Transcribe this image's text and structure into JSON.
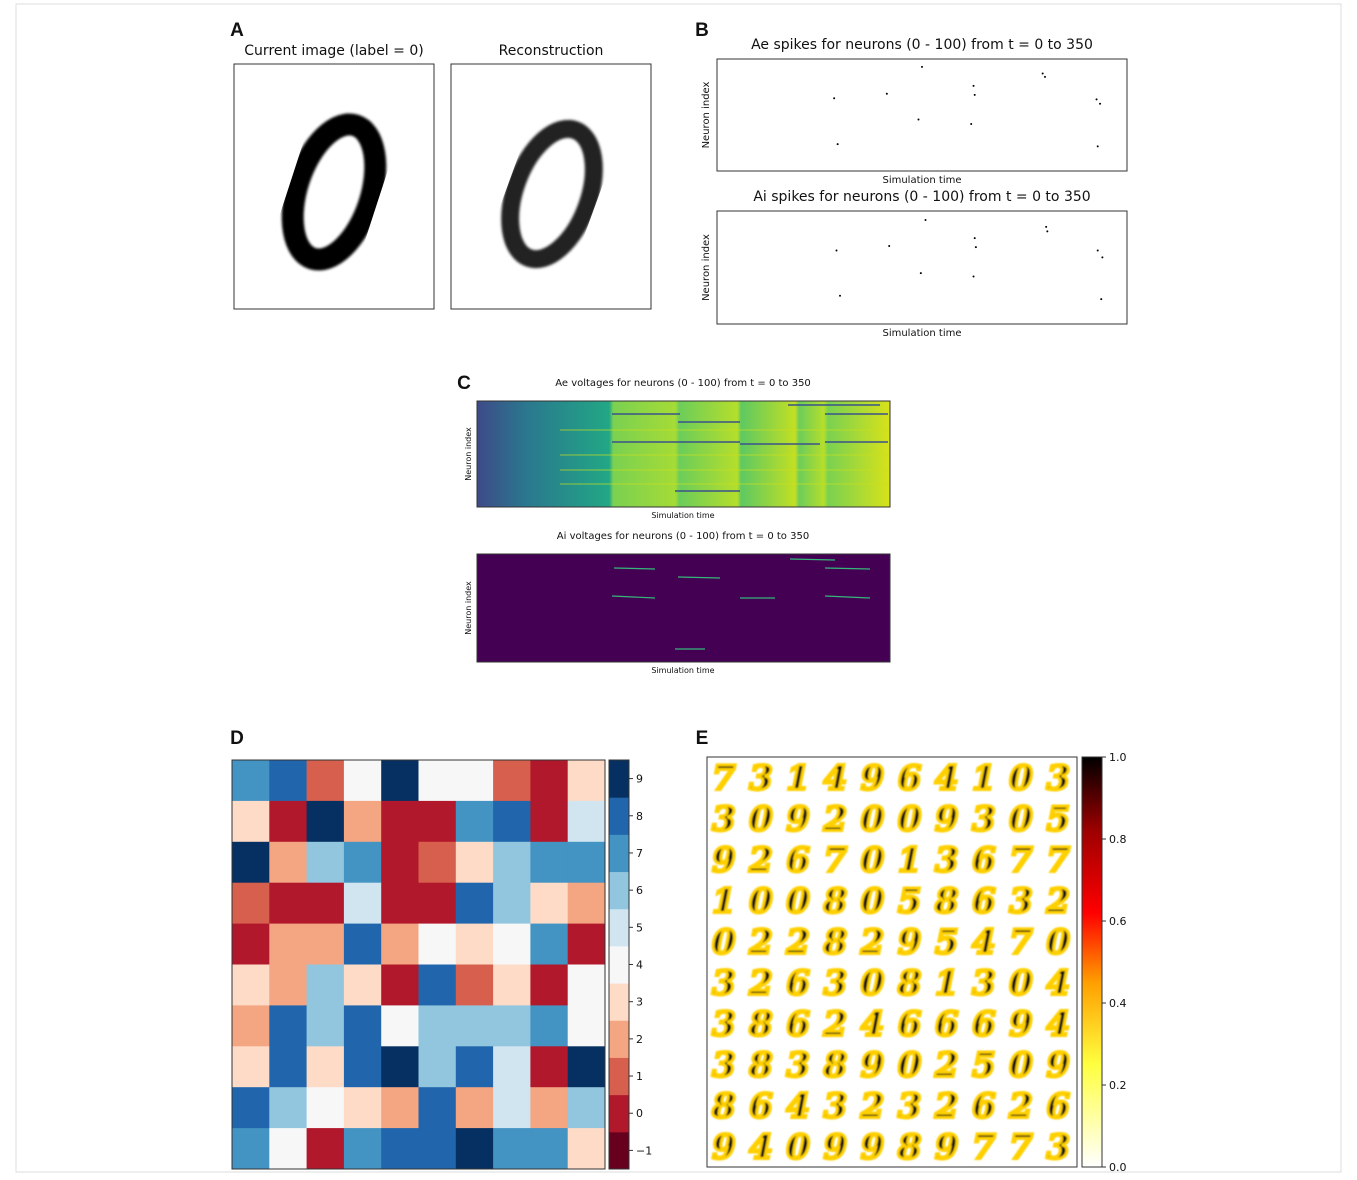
{
  "chart_data": [
    {
      "type": "image",
      "panel_label": "A",
      "titles": [
        "Current image (label = 0)",
        "Reconstruction"
      ]
    },
    {
      "type": "scatter",
      "panel_label": "B",
      "title": "Ae spikes for neurons (0 - 100) from t = 0 to 350",
      "xlabel": "Simulation time",
      "ylabel": "Neuron index",
      "xlim": [
        0,
        350
      ],
      "ylim": [
        0,
        100
      ],
      "x": [
        175,
        100,
        145,
        219,
        220,
        278,
        280,
        324,
        327,
        172,
        217,
        103,
        325
      ],
      "y": [
        93,
        65,
        69,
        76,
        68,
        87,
        84,
        64,
        60,
        46,
        42,
        24,
        22
      ],
      "color": "#000000"
    },
    {
      "type": "scatter",
      "title": "Ai spikes for neurons (0 - 100) from t = 0 to 350",
      "xlabel": "Simulation time",
      "ylabel": "Neuron index",
      "xlim": [
        0,
        350
      ],
      "ylim": [
        0,
        100
      ],
      "x": [
        178,
        102,
        147,
        220,
        221,
        281,
        282,
        325,
        329,
        174,
        219,
        105,
        328
      ],
      "y": [
        92,
        65,
        69,
        76,
        68,
        86,
        82,
        65,
        59,
        45,
        42,
        25,
        22
      ],
      "color": "#000000"
    },
    {
      "type": "voltage-image",
      "panel_label": "C",
      "title": "Ae voltages for neurons (0 - 100) from t = 0 to 350",
      "xlabel": "Simulation time",
      "ylabel": "Neuron index"
    },
    {
      "type": "voltage-image",
      "title": "Ai voltages for neurons (0 - 100) from t = 0 to 350",
      "xlabel": "Simulation time",
      "ylabel": "Neuron index"
    },
    {
      "type": "heatmap",
      "panel_label": "D",
      "values": [
        [
          7,
          8,
          1,
          4,
          9,
          4,
          4,
          1,
          0,
          3
        ],
        [
          3,
          0,
          9,
          2,
          0,
          0,
          7,
          8,
          0,
          5
        ],
        [
          9,
          2,
          6,
          7,
          0,
          1,
          3,
          6,
          7,
          7
        ],
        [
          1,
          0,
          0,
          5,
          0,
          0,
          8,
          6,
          3,
          2
        ],
        [
          0,
          2,
          2,
          8,
          2,
          4,
          3,
          4,
          7,
          0
        ],
        [
          3,
          2,
          6,
          3,
          0,
          8,
          1,
          3,
          0,
          4
        ],
        [
          2,
          8,
          6,
          8,
          4,
          6,
          6,
          6,
          7,
          4
        ],
        [
          3,
          8,
          3,
          8,
          9,
          6,
          8,
          5,
          0,
          9
        ],
        [
          8,
          6,
          4,
          3,
          2,
          8,
          2,
          5,
          2,
          6
        ],
        [
          7,
          4,
          0,
          7,
          8,
          8,
          9,
          7,
          7,
          3
        ]
      ],
      "colors": [
        "#67001f",
        "#b2182b",
        "#d6604d",
        "#f4a582",
        "#fddbc7",
        "#f7f7f7",
        "#d1e5f0",
        "#92c5de",
        "#4393c3",
        "#2166ac",
        "#053061"
      ],
      "clim": [
        -1.5,
        9.5
      ],
      "cticks": [
        {
          "value": -1,
          "label": "−1"
        },
        0,
        1,
        2,
        3,
        4,
        5,
        6,
        7,
        8,
        9
      ]
    },
    {
      "type": "image-grid",
      "panel_label": "E",
      "digits": [
        "7314964103",
        "3092009305",
        "9267013677",
        "1008058632",
        "0228295470",
        "3263081304",
        "3862466694",
        "3838902509",
        "8643232626",
        "9409989773"
      ],
      "clim": [
        0,
        1
      ],
      "cticks": [
        {
          "value": 0,
          "label": "0.0"
        },
        0.2,
        0.4,
        0.6,
        0.8,
        {
          "value": 1,
          "label": "1.0"
        }
      ]
    }
  ]
}
